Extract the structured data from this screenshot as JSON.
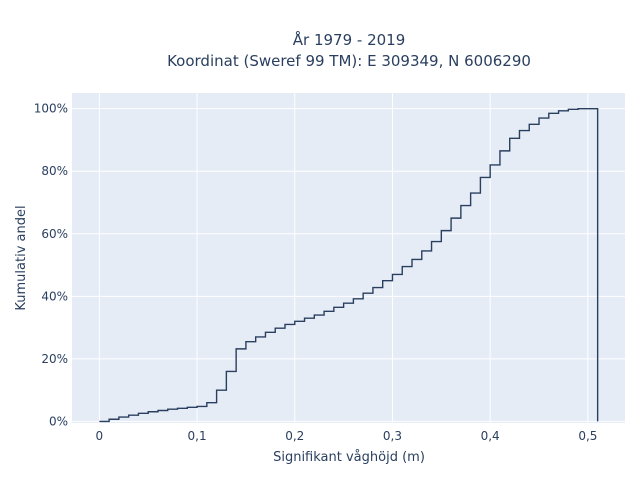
{
  "chart_data": {
    "type": "line",
    "line_shape": "step",
    "title_line1": "År 1979 - 2019",
    "title_line2": "Koordinat (Sweref 99 TM): E 309349, N 6006290",
    "xlabel": "Signifikant våghöjd (m)",
    "ylabel": "Kumulativ andel",
    "xlim": [
      -0.028,
      0.538
    ],
    "ylim": [
      -0.005,
      1.05
    ],
    "x_ticks": [
      0,
      0.1,
      0.2,
      0.3,
      0.4,
      0.5
    ],
    "x_tick_labels": [
      "0",
      "0,1",
      "0,2",
      "0,3",
      "0,4",
      "0,5"
    ],
    "y_ticks": [
      0,
      0.2,
      0.4,
      0.6,
      0.8,
      1.0
    ],
    "y_tick_labels": [
      "0%",
      "20%",
      "40%",
      "60%",
      "80%",
      "100%"
    ],
    "grid": true,
    "colors": {
      "plot_bg": "#e5ecf6",
      "grid": "#ffffff",
      "line": "#2a3f5f",
      "text": "#2a3f5f"
    },
    "series": [
      {
        "x": [
          0,
          0.01,
          0.02,
          0.03,
          0.04,
          0.05,
          0.06,
          0.07,
          0.08,
          0.09,
          0.1,
          0.11,
          0.12,
          0.13,
          0.14,
          0.15,
          0.16,
          0.17,
          0.18,
          0.19,
          0.2,
          0.21,
          0.22,
          0.23,
          0.24,
          0.25,
          0.26,
          0.27,
          0.28,
          0.29,
          0.3,
          0.31,
          0.32,
          0.33,
          0.34,
          0.35,
          0.36,
          0.37,
          0.38,
          0.39,
          0.4,
          0.41,
          0.42,
          0.43,
          0.44,
          0.45,
          0.46,
          0.47,
          0.48,
          0.49,
          0.5,
          0.51
        ],
        "y": [
          0.0,
          0.007,
          0.014,
          0.02,
          0.026,
          0.031,
          0.035,
          0.039,
          0.042,
          0.045,
          0.048,
          0.06,
          0.1,
          0.16,
          0.232,
          0.255,
          0.27,
          0.285,
          0.298,
          0.31,
          0.32,
          0.33,
          0.34,
          0.352,
          0.365,
          0.378,
          0.392,
          0.41,
          0.428,
          0.45,
          0.47,
          0.495,
          0.518,
          0.545,
          0.575,
          0.61,
          0.65,
          0.69,
          0.73,
          0.78,
          0.82,
          0.865,
          0.905,
          0.93,
          0.95,
          0.97,
          0.985,
          0.993,
          0.998,
          1.0,
          1.0,
          1.0
        ]
      }
    ]
  }
}
